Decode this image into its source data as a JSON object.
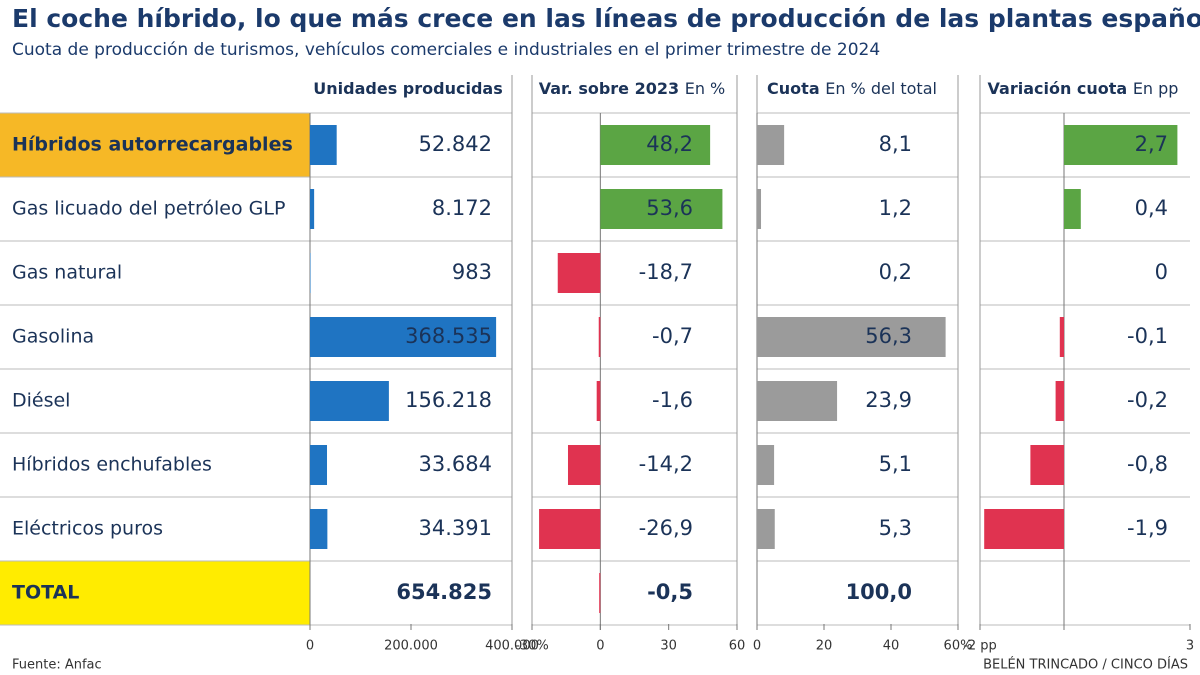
{
  "chart_data": {
    "type": "bar",
    "title": "El coche híbrido, lo que más crece en las líneas de producción de las plantas españolas",
    "subtitle": "Cuota de producción de turismos, vehículos comerciales e industriales en el primer trimestre de 2024",
    "source": "Fuente: Anfac",
    "credit": "BELÉN TRINCADO / CINCO DÍAS",
    "categories": [
      "Híbridos autorrecargables",
      "Gas licuado del petróleo GLP",
      "Gas natural",
      "Gasolina",
      "Diésel",
      "Híbridos enchufables",
      "Eléctricos puros"
    ],
    "total_label": "TOTAL",
    "panels": [
      {
        "header": "Unidades producidas",
        "color": "#1f74c2",
        "values": [
          52842,
          8172,
          983,
          368535,
          156218,
          33684,
          34391
        ],
        "value_labels": [
          "52.842",
          "8.172",
          "983",
          "368.535",
          "156.218",
          "33.684",
          "34.391"
        ],
        "total": 654825,
        "total_value_label": "654.825",
        "xlim": [
          0,
          400000
        ],
        "xticks": [
          0,
          {
            "value": 200000,
            "label": "200.000"
          },
          {
            "value": 400000,
            "label": "400.000"
          }
        ]
      },
      {
        "header": "Var. sobre 2023",
        "unit": "En %",
        "color": "#5ba544",
        "negative_color": "#e03350",
        "values": [
          48.2,
          53.6,
          -18.7,
          -0.7,
          -1.6,
          -14.2,
          -26.9
        ],
        "value_labels": [
          "48,2",
          "53,6",
          "-18,7",
          "-0,7",
          "-1,6",
          "-14,2",
          "-26,9"
        ],
        "total": -0.5,
        "total_value_label": "-0,5",
        "total_bar": true,
        "xlim": [
          -30,
          60
        ],
        "xticks": [
          {
            "value": -30,
            "label": "-30%"
          },
          0,
          30,
          60
        ]
      },
      {
        "header": "Cuota",
        "unit": "En % del total",
        "color": "#9b9b9b",
        "values": [
          8.1,
          1.2,
          0.2,
          56.3,
          23.9,
          5.1,
          5.3
        ],
        "value_labels": [
          "8,1",
          "1,2",
          "0,2",
          "56,3",
          "23,9",
          "5,1",
          "5,3"
        ],
        "total": 100.0,
        "total_value_label": "100,0",
        "xlim": [
          0,
          60
        ],
        "xticks": [
          0,
          20,
          40,
          {
            "value": 60,
            "label": "60%"
          }
        ]
      },
      {
        "header": "Variación cuota",
        "unit": "En pp",
        "color": "#5ba544",
        "negative_color": "#e03350",
        "values": [
          2.7,
          0.4,
          0,
          -0.1,
          -0.2,
          -0.8,
          -1.9
        ],
        "value_labels": [
          "2,7",
          "0,4",
          "0",
          "-0,1",
          "-0,2",
          "-0,8",
          "-1,9"
        ],
        "xlim": [
          -2,
          3
        ],
        "xticks": [
          {
            "value": -2,
            "label": "-2 pp"
          },
          3
        ]
      }
    ]
  }
}
